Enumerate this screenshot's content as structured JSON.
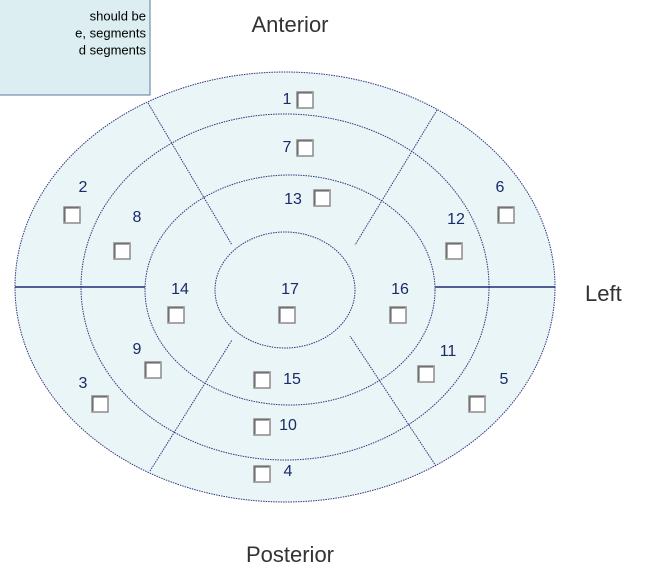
{
  "tooltip": {
    "lines": [
      "should be",
      "e, segments",
      "d segments"
    ]
  },
  "directions": {
    "top": "Anterior",
    "bottom": "Posterior",
    "right": "Left"
  },
  "segments": [
    {
      "label": "1"
    },
    {
      "label": "2"
    },
    {
      "label": "3"
    },
    {
      "label": "4"
    },
    {
      "label": "5"
    },
    {
      "label": "6"
    },
    {
      "label": "7"
    },
    {
      "label": "8"
    },
    {
      "label": "9"
    },
    {
      "label": "10"
    },
    {
      "label": "11"
    },
    {
      "label": "12"
    },
    {
      "label": "13"
    },
    {
      "label": "14"
    },
    {
      "label": "15"
    },
    {
      "label": "16"
    },
    {
      "label": "17"
    }
  ]
}
